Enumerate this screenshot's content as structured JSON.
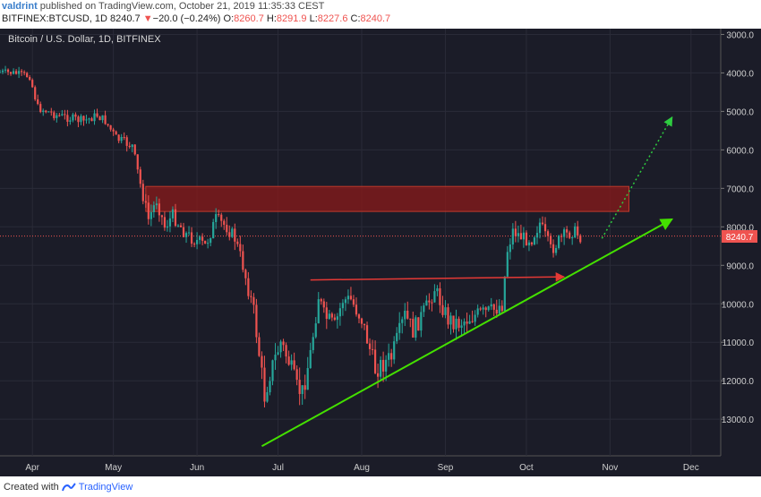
{
  "header": {
    "author": "valdrint",
    "published": "published on TradingView.com, October 21, 2019 11:35:33 CEST",
    "symbol": "BITFINEX:BTCUSD, 1D",
    "last": "8240.7",
    "change_arrow": "▼",
    "change": "−20.0 (−0.24%)",
    "o_label": "O:",
    "o": "8260.7",
    "h_label": "H:",
    "h": "8291.9",
    "l_label": "L:",
    "l": "8227.6",
    "c_label": "C:",
    "c": "8240.7"
  },
  "legend_label": "Bitcoin / U.S. Dollar, 1D, BITFINEX",
  "price_tag": "8240.7",
  "footer": {
    "created_with": "Created with",
    "brand": "TradingView"
  },
  "colors": {
    "background": "#1b1c28",
    "grid": "#2a2b38",
    "up_candle": "#26a69a",
    "down_candle": "#ef5350",
    "zone": "#8b1a1a",
    "trendline": "#44e000",
    "resistance_arrow": "#e53935",
    "target_arrow": "#2ecc40",
    "axis_text": "#cfcfcf"
  },
  "chart_data": {
    "type": "candlestick",
    "y_axis_inverted": true,
    "ylim": [
      2850,
      13950
    ],
    "yticks": [
      "3000.0",
      "4000.0",
      "5000.0",
      "6000.0",
      "7000.0",
      "8000.0",
      "9000.0",
      "10000.0",
      "11000.0",
      "12000.0",
      "13000.0"
    ],
    "xticks": [
      "Apr",
      "May",
      "Jun",
      "Jul",
      "Aug",
      "Sep",
      "Oct",
      "Nov",
      "Dec"
    ],
    "xtick_dates": [
      "2019-04-01",
      "2019-05-01",
      "2019-06-01",
      "2019-07-01",
      "2019-08-01",
      "2019-09-01",
      "2019-10-01",
      "2019-11-01",
      "2019-12-01"
    ],
    "x_range": [
      "2019-03-20",
      "2019-12-12"
    ],
    "last_price": 8240.7,
    "series_points": [
      [
        "2019-03-20",
        3980
      ],
      [
        "2019-03-25",
        4000
      ],
      [
        "2019-03-31",
        4090
      ],
      [
        "2019-04-03",
        4900
      ],
      [
        "2019-04-10",
        5100
      ],
      [
        "2019-04-20",
        5250
      ],
      [
        "2019-04-25",
        5100
      ],
      [
        "2019-04-28",
        5250
      ],
      [
        "2019-05-02",
        5700
      ],
      [
        "2019-05-08",
        5900
      ],
      [
        "2019-05-11",
        6900
      ],
      [
        "2019-05-14",
        7800
      ],
      [
        "2019-05-17",
        7300
      ],
      [
        "2019-05-20",
        8000
      ],
      [
        "2019-05-23",
        7700
      ],
      [
        "2019-05-28",
        8200
      ],
      [
        "2019-06-04",
        8500
      ],
      [
        "2019-06-08",
        7800
      ],
      [
        "2019-06-12",
        8000
      ],
      [
        "2019-06-15",
        8300
      ],
      [
        "2019-06-18",
        9000
      ],
      [
        "2019-06-22",
        10200
      ],
      [
        "2019-06-26",
        12400
      ],
      [
        "2019-06-28",
        11800
      ],
      [
        "2019-07-02",
        11000
      ],
      [
        "2019-07-05",
        11500
      ],
      [
        "2019-07-08",
        12200
      ],
      [
        "2019-07-10",
        12300
      ],
      [
        "2019-07-13",
        11300
      ],
      [
        "2019-07-16",
        9800
      ],
      [
        "2019-07-18",
        10300
      ],
      [
        "2019-07-22",
        10600
      ],
      [
        "2019-07-25",
        9900
      ],
      [
        "2019-07-28",
        9900
      ],
      [
        "2019-08-01",
        10400
      ],
      [
        "2019-08-06",
        11700
      ],
      [
        "2019-08-12",
        11400
      ],
      [
        "2019-08-17",
        10300
      ],
      [
        "2019-08-20",
        10700
      ],
      [
        "2019-08-25",
        10100
      ],
      [
        "2019-08-28",
        9600
      ],
      [
        "2019-09-02",
        10400
      ],
      [
        "2019-09-06",
        10500
      ],
      [
        "2019-09-12",
        10300
      ],
      [
        "2019-09-18",
        10200
      ],
      [
        "2019-09-22",
        10000
      ],
      [
        "2019-09-24",
        8600
      ],
      [
        "2019-09-26",
        8100
      ],
      [
        "2019-09-30",
        8300
      ],
      [
        "2019-10-03",
        8300
      ],
      [
        "2019-10-06",
        7900
      ],
      [
        "2019-10-10",
        8600
      ],
      [
        "2019-10-14",
        8300
      ],
      [
        "2019-10-18",
        8100
      ],
      [
        "2019-10-21",
        8240
      ]
    ],
    "annotations": [
      {
        "type": "zone",
        "label": "resistance-zone",
        "x": [
          "2019-05-13",
          "2019-11-08"
        ],
        "y": [
          6950,
          7600
        ]
      },
      {
        "type": "trendline",
        "label": "ascending-support",
        "from": [
          "2019-06-25",
          13700
        ],
        "to": [
          "2019-11-24",
          7800
        ]
      },
      {
        "type": "arrow",
        "label": "horizontal-resistance",
        "from": [
          "2019-07-13",
          9380
        ],
        "to": [
          "2019-10-15",
          9300
        ]
      },
      {
        "type": "dotted-arrow",
        "label": "projected-breakout",
        "from": [
          "2019-10-29",
          8300
        ],
        "to": [
          "2019-11-24",
          5150
        ]
      }
    ]
  }
}
